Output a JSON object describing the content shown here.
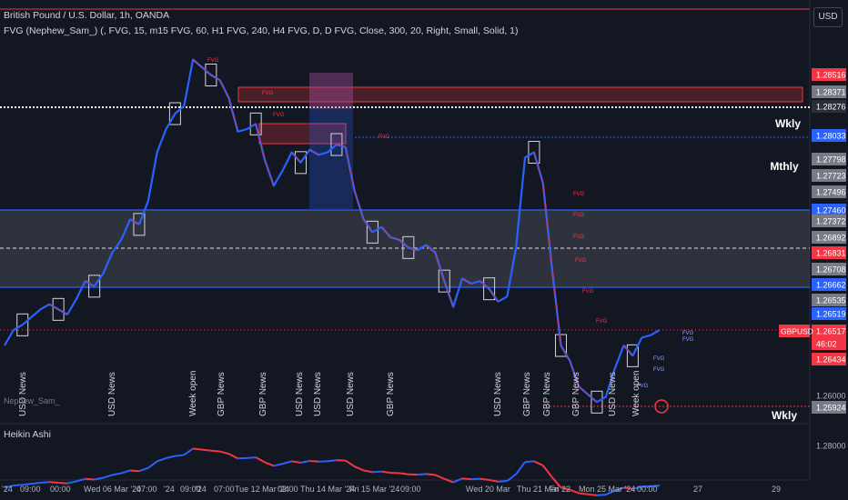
{
  "header": {
    "title": "British Pound / U.S. Dollar, 1h, OANDA",
    "indicator": "FVG (Nephew_Sam_) (, FVG, 15, m15 FVG, 60, H1 FVG, 240, H4 FVG, D, D FVG, Close, 300, 20, Right, Small, Solid, 1)",
    "currency": "USD"
  },
  "lower_pane": {
    "label": "Heikin Ashi",
    "watermark": "Nephew_Sam_"
  },
  "labels": {
    "wkly": "Wkly",
    "mthly": "Mthly",
    "wkly2": "Wkly"
  },
  "price_tags": [
    {
      "value": "1.28516",
      "color": "#f23645"
    },
    {
      "value": "1.28371",
      "color": "#787b86"
    },
    {
      "value": "1.28276",
      "color": "#2a2e39"
    },
    {
      "value": "1.28033",
      "color": "#2962ff"
    },
    {
      "value": "1.27798",
      "color": "#787b86"
    },
    {
      "value": "1.27723",
      "color": "#787b86"
    },
    {
      "value": "1.27496",
      "color": "#787b86"
    },
    {
      "value": "1.27460",
      "color": "#2962ff"
    },
    {
      "value": "1.27372",
      "color": "#787b86"
    },
    {
      "value": "1.26892",
      "color": "#787b86"
    },
    {
      "value": "1.26831",
      "color": "#f23645"
    },
    {
      "value": "1.26708",
      "color": "#787b86"
    },
    {
      "value": "1.26662",
      "color": "#2962ff"
    },
    {
      "value": "1.26535",
      "color": "#787b86"
    },
    {
      "value": "1.26519",
      "color": "#2962ff"
    },
    {
      "value": "1.26517",
      "color": "#f23645"
    },
    {
      "value": "46:02",
      "color": "#f23645"
    },
    {
      "value": "1.26434",
      "color": "#f23645"
    },
    {
      "value": "1.26000",
      "color": "none"
    },
    {
      "value": "1.25924",
      "color": "#787b86"
    },
    {
      "value": "1.28000",
      "color": "none"
    }
  ],
  "symbol_tag": "GBPUSD",
  "time_labels": [
    "'24",
    "09:00",
    "00:00",
    "Wed 06 Mar '24",
    "07:00",
    "'24",
    "09:00",
    "'24",
    "07:00",
    "Tue 12 Mar '24",
    "02:00",
    "Thu 14 Mar '24",
    "Fri 15 Mar '24",
    "09:00",
    "Wed 20 Mar",
    "Thu 21 Mar",
    "Fri 22",
    "Mon 25 Mar '24",
    "00:00",
    "27",
    "29"
  ],
  "news_labels": [
    "USD News",
    "USD News",
    "Week open",
    "GBP News",
    "GBP News",
    "USD News",
    "USD News",
    "USD News",
    "GBP News",
    "USD News",
    "GBP News",
    "GBP News",
    "GBP News",
    "USD News",
    "Week open"
  ],
  "fvg_labels": [
    "FVG",
    "FVG",
    "FVG",
    "FVG",
    "FVG",
    "FVG",
    "FVG",
    "FVG",
    "FVG",
    "FVG",
    "FVG",
    "FVG",
    "FVG",
    "FVG",
    "FVG"
  ],
  "chart_data": {
    "type": "line",
    "title": "British Pound / U.S. Dollar, 1h, OANDA",
    "series": [
      {
        "name": "GBPUSD",
        "x_index": [
          0,
          10,
          20,
          30,
          40,
          50,
          60,
          70,
          80,
          90,
          100,
          110,
          120,
          130,
          140,
          150,
          160,
          170,
          180,
          190,
          200,
          210,
          220,
          230,
          240,
          250,
          260,
          270,
          280,
          290,
          300,
          310,
          320,
          330,
          340,
          350,
          360,
          370,
          380,
          390,
          400,
          410,
          420,
          430,
          440,
          450,
          460,
          470,
          480,
          490,
          500,
          510,
          520,
          530,
          540,
          550,
          560,
          570,
          580,
          590,
          600,
          610,
          620,
          630,
          640,
          650,
          660,
          670,
          680,
          690,
          700,
          710,
          720,
          730
        ],
        "values": [
          1.264,
          1.2652,
          1.2656,
          1.2662,
          1.2668,
          1.2672,
          1.2668,
          1.2664,
          1.2676,
          1.269,
          1.2686,
          1.2696,
          1.2712,
          1.2722,
          1.2738,
          1.2734,
          1.2752,
          1.279,
          1.2808,
          1.282,
          1.2826,
          1.2862,
          1.2856,
          1.285,
          1.2846,
          1.2832,
          1.2806,
          1.2808,
          1.2812,
          1.2784,
          1.2764,
          1.2776,
          1.279,
          1.2782,
          1.2792,
          1.2788,
          1.279,
          1.2796,
          1.2794,
          1.276,
          1.2738,
          1.2728,
          1.2732,
          1.2724,
          1.2722,
          1.2716,
          1.2714,
          1.2718,
          1.2712,
          1.269,
          1.267,
          1.2692,
          1.2688,
          1.269,
          1.2684,
          1.2674,
          1.2678,
          1.2716,
          1.2786,
          1.279,
          1.2766,
          1.27,
          1.264,
          1.2628,
          1.2608,
          1.2602,
          1.2596,
          1.26,
          1.2622,
          1.264,
          1.2632,
          1.2646,
          1.2648,
          1.2652
        ]
      }
    ],
    "ylim": [
      1.258,
      1.288
    ],
    "zones": [
      {
        "name": "Wkly",
        "from": 1.2664,
        "to": 1.2746
      },
      {
        "name": "Mthly",
        "from": 1.2822,
        "to": 1.2836
      }
    ]
  }
}
